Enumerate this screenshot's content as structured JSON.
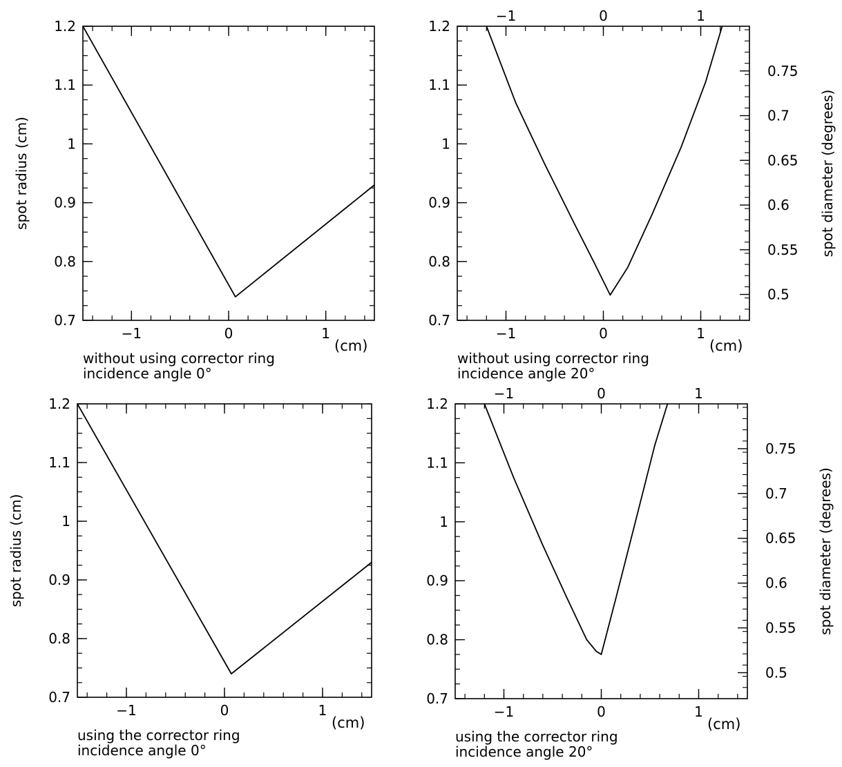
{
  "figure": {
    "background": "#ffffff",
    "line_color": "#000000"
  },
  "chart_data": [
    {
      "id": "p1",
      "type": "line",
      "title": "",
      "ylabel": "spot radius (cm)",
      "xunit": "(cm)",
      "caption": [
        "without using corrector ring",
        "incidence angle 0°"
      ],
      "xlim": [
        -1.5,
        1.5
      ],
      "ylim": [
        0.7,
        1.2
      ],
      "xticks": [
        -1,
        0,
        1
      ],
      "xtick_labels": [
        "−1",
        "0",
        "1"
      ],
      "yticks": [
        0.7,
        0.8,
        0.9,
        1.0,
        1.1,
        1.2
      ],
      "ytick_labels": [
        "0.7",
        "0.8",
        "0.9",
        "1",
        "1.1",
        "1.2"
      ],
      "x": [
        -1.5,
        0.07,
        1.5
      ],
      "y": [
        1.2,
        0.74,
        0.93
      ]
    },
    {
      "id": "p2",
      "type": "line",
      "title": "",
      "xunit": "(cm)",
      "caption": [
        "without using corrector ring",
        "incidence angle 20°"
      ],
      "xlim": [
        -1.5,
        1.5
      ],
      "ylim": [
        0.7,
        1.2
      ],
      "xticks": [
        -1,
        0,
        1
      ],
      "xtick_labels": [
        "−1",
        "0",
        "1"
      ],
      "top_xtick_labels": [
        "−1",
        "0",
        "1"
      ],
      "yticks": [
        0.7,
        0.8,
        0.9,
        1.0,
        1.1,
        1.2
      ],
      "ytick_labels": [
        "0.7",
        "0.8",
        "0.9",
        "1",
        "1.1",
        "1.2"
      ],
      "right_axis": {
        "label": "spot diameter (degrees)",
        "ticks": [
          0.5,
          0.55,
          0.6,
          0.65,
          0.7,
          0.75
        ],
        "tick_labels": [
          "0.5",
          "0.55",
          "0.6",
          "0.65",
          "0.7",
          "0.75"
        ],
        "positions_in_y_units": [
          0.744,
          0.82,
          0.896,
          0.972,
          1.048,
          1.124
        ]
      },
      "x": [
        -1.2,
        -0.9,
        -0.6,
        -0.3,
        -0.1,
        0.07,
        0.25,
        0.5,
        0.8,
        1.05,
        1.22
      ],
      "y": [
        1.2,
        1.07,
        0.965,
        0.865,
        0.8,
        0.743,
        0.79,
        0.88,
        0.995,
        1.105,
        1.2
      ]
    },
    {
      "id": "p3",
      "type": "line",
      "title": "",
      "ylabel": "spot radius (cm)",
      "xunit": "(cm)",
      "caption": [
        "using the corrector ring",
        "incidence angle 0°"
      ],
      "xlim": [
        -1.5,
        1.5
      ],
      "ylim": [
        0.7,
        1.2
      ],
      "xticks": [
        -1,
        0,
        1
      ],
      "xtick_labels": [
        "−1",
        "0",
        "1"
      ],
      "yticks": [
        0.7,
        0.8,
        0.9,
        1.0,
        1.1,
        1.2
      ],
      "ytick_labels": [
        "0.7",
        "0.8",
        "0.9",
        "1",
        "1.1",
        "1.2"
      ],
      "x": [
        -1.5,
        0.07,
        1.5
      ],
      "y": [
        1.2,
        0.74,
        0.93
      ]
    },
    {
      "id": "p4",
      "type": "line",
      "title": "",
      "xunit": "(cm)",
      "caption": [
        "using the corrector ring",
        "incidence angle 20°"
      ],
      "xlim": [
        -1.5,
        1.5
      ],
      "ylim": [
        0.7,
        1.2
      ],
      "xticks": [
        -1,
        0,
        1
      ],
      "xtick_labels": [
        "−1",
        "0",
        "1"
      ],
      "top_xtick_labels": [
        "−1",
        "0",
        "1"
      ],
      "yticks": [
        0.7,
        0.8,
        0.9,
        1.0,
        1.1,
        1.2
      ],
      "ytick_labels": [
        "0.7",
        "0.8",
        "0.9",
        "1",
        "1.1",
        "1.2"
      ],
      "right_axis": {
        "label": "spot diameter (degrees)",
        "ticks": [
          0.5,
          0.55,
          0.6,
          0.65,
          0.7,
          0.75
        ],
        "tick_labels": [
          "0.5",
          "0.55",
          "0.6",
          "0.65",
          "0.7",
          "0.75"
        ],
        "positions_in_y_units": [
          0.744,
          0.82,
          0.896,
          0.972,
          1.048,
          1.124
        ]
      },
      "x": [
        -1.2,
        -0.9,
        -0.6,
        -0.35,
        -0.15,
        -0.05,
        0.0,
        0.15,
        0.35,
        0.55,
        0.68
      ],
      "y": [
        1.2,
        1.075,
        0.96,
        0.87,
        0.8,
        0.78,
        0.775,
        0.87,
        1.0,
        1.13,
        1.2
      ]
    }
  ]
}
